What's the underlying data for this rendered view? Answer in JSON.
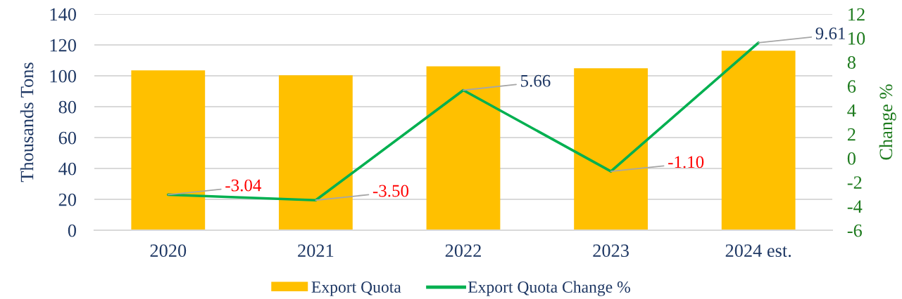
{
  "chart_data": {
    "type": "bar",
    "categories": [
      "2020",
      "2021",
      "2022",
      "2023",
      "2024 est."
    ],
    "ylabel": "Thousands Tons",
    "y2label": "Change %",
    "ylim": [
      0,
      140
    ],
    "yticks": [
      0,
      20,
      40,
      60,
      80,
      100,
      120,
      140
    ],
    "y2lim": [
      -6,
      12
    ],
    "y2ticks": [
      -6,
      -4,
      -2,
      0,
      2,
      4,
      6,
      8,
      10,
      12
    ],
    "grid": "y",
    "legend": "bottom",
    "series": [
      {
        "name": "Export Quota",
        "color": "#ffc000",
        "values": [
          103.5,
          100.3,
          106.1,
          104.9,
          116.3
        ]
      },
      {
        "name": "Export Quota Change %",
        "type": "line",
        "axis": "y2",
        "color": "#00b050",
        "values": [
          -3.04,
          -3.5,
          5.66,
          -1.1,
          9.61
        ],
        "value_labels": [
          "-3.04",
          "-3.50",
          "5.66",
          "-1.10",
          "9.61"
        ]
      }
    ]
  }
}
